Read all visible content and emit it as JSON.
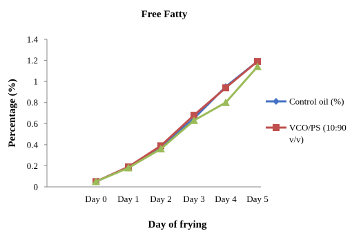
{
  "chart_data": {
    "type": "line",
    "title": "Free Fatty",
    "xlabel": "Day of frying",
    "ylabel": "Percentage (%)",
    "categories": [
      "Day 0",
      "Day 1",
      "Day 2",
      "Day 3",
      "Day 4",
      "Day 5"
    ],
    "ylim": [
      0,
      1.4
    ],
    "yticks": [
      "0",
      "0.2",
      "0.4",
      "0.6",
      "0.8",
      "1",
      "1.2",
      "1.4"
    ],
    "grid": false,
    "legend_position": "right",
    "series": [
      {
        "name": "Control oil (%)",
        "color": "#4472C4",
        "marker": "diamond",
        "values": [
          0.05,
          0.19,
          0.38,
          0.65,
          0.95,
          1.19
        ]
      },
      {
        "name": "VCO/PS (10:90 v/v)",
        "color": "#C0504D",
        "marker": "square",
        "values": [
          0.05,
          0.19,
          0.39,
          0.68,
          0.94,
          1.19
        ]
      },
      {
        "name": "",
        "color": "#9BBB59",
        "marker": "triangle",
        "values": [
          0.05,
          0.18,
          0.36,
          0.63,
          0.8,
          1.14
        ]
      }
    ]
  }
}
